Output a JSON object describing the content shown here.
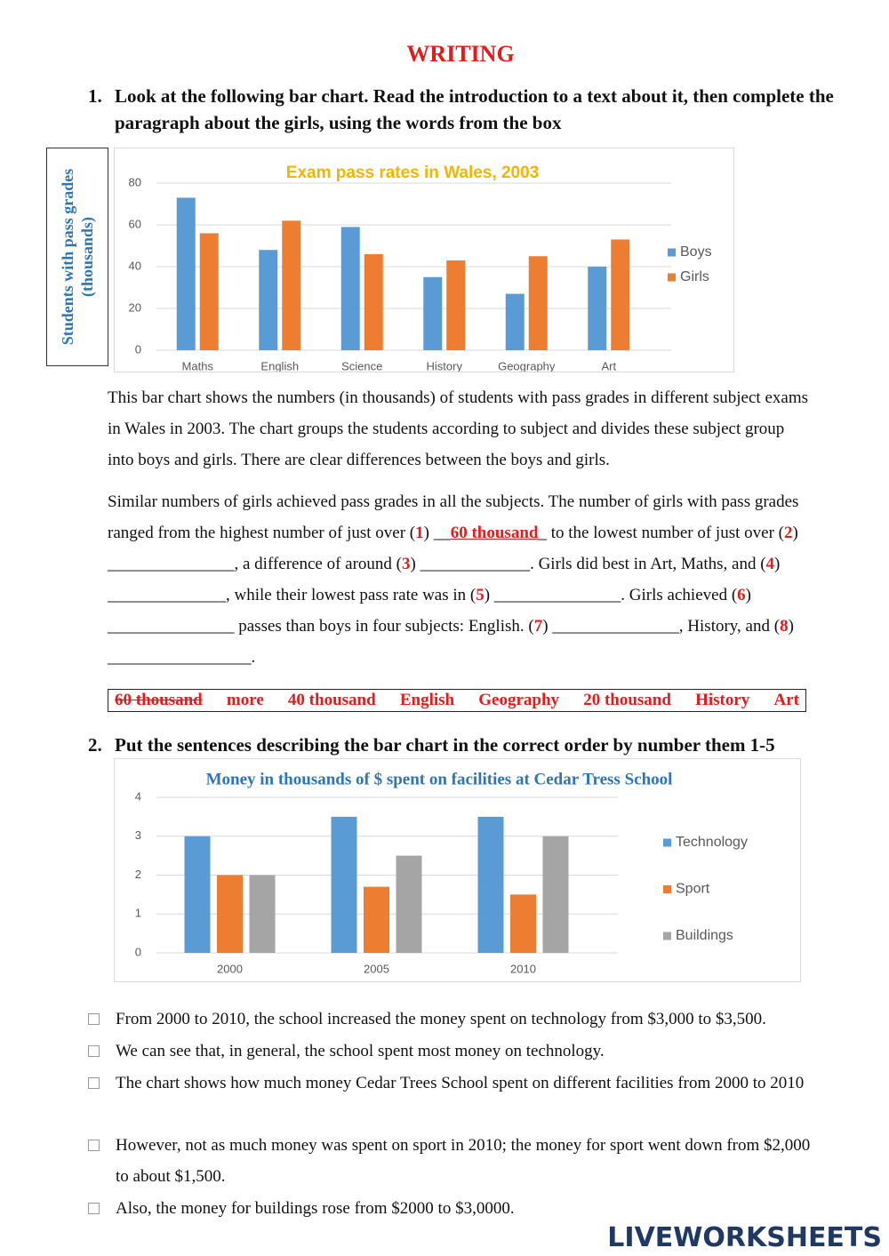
{
  "header": {
    "title": "WRITING"
  },
  "task1": {
    "number": "1.",
    "instruction": "Look at the following bar chart. Read the introduction to a text about it, then complete the paragraph about the girls, using the words from the box",
    "intro": " This bar chart shows the numbers (in thousands) of students with pass grades in different subject exams in Wales in 2003. The chart groups the students according to subject and divides these subject group into boys and girls. There are clear differences between the boys and girls.",
    "gap_text": [
      {
        "text": " Similar numbers of girls achieved pass grades in all the subjects. The number of girls with pass grades ranged from the highest number of just over (",
        "style": "plain"
      },
      {
        "text": "1",
        "style": "number"
      },
      {
        "text": ") __",
        "style": "plain"
      },
      {
        "text": "60 thousand",
        "style": "answer"
      },
      {
        "text": "_ to the lowest number of just over (",
        "style": "plain"
      },
      {
        "text": "2",
        "style": "number"
      },
      {
        "text": ") _______________, a difference of around (",
        "style": "plain"
      },
      {
        "text": "3",
        "style": "number"
      },
      {
        "text": ") _____________. Girls did best in Art, Maths, and (",
        "style": "plain"
      },
      {
        "text": "4",
        "style": "number"
      },
      {
        "text": ") ______________, while their lowest pass rate was in (",
        "style": "plain"
      },
      {
        "text": "5",
        "style": "number"
      },
      {
        "text": ") _______________. Girls achieved (",
        "style": "plain"
      },
      {
        "text": "6",
        "style": "number"
      },
      {
        "text": ") _______________ passes than boys in four subjects: English. (",
        "style": "plain"
      },
      {
        "text": "7",
        "style": "number"
      },
      {
        "text": ") _______________, History, and (",
        "style": "plain"
      },
      {
        "text": "8",
        "style": "number"
      },
      {
        "text": ") _________________.",
        "style": "plain"
      }
    ],
    "word_box": {
      "words": [
        "60 thousand",
        "more",
        "40 thousand",
        "English",
        "Geography",
        "20 thousand",
        "History",
        "Art"
      ],
      "crossed_out_index": 0
    }
  },
  "task2": {
    "number": "2.",
    "instruction": "Put the sentences describing the bar chart in the correct order by number them 1-5",
    "sentences": [
      "From 2000 to 2010, the school increased the money spent on technology from $3,000 to $3,500.",
      "We can see that, in general, the school spent most money on technology.",
      "The chart shows how much money Cedar Trees School spent on different facilities from 2000 to 2010",
      "However, not as much money was spent on sport in 2010; the money for sport went down from $2,000 to about $1,500.",
      "Also, the money for buildings rose from $2000 to $3,0000."
    ]
  },
  "chart_data": [
    {
      "type": "bar",
      "title": "Exam pass rates in Wales, 2003",
      "title_color": "#f5b400",
      "ylabel": "Students with pass grades (thousands)",
      "categories": [
        "Maths",
        "English",
        "Science",
        "History",
        "Geography",
        "Art"
      ],
      "series": [
        {
          "name": "Boys",
          "color": "#5b9bd5",
          "values": [
            73,
            48,
            59,
            35,
            27,
            40
          ]
        },
        {
          "name": "Girls",
          "color": "#ed7d31",
          "values": [
            56,
            62,
            46,
            43,
            45,
            53
          ]
        }
      ],
      "ylim": [
        0,
        80
      ],
      "yticks": [
        0,
        20,
        40,
        60,
        80
      ],
      "grid": true,
      "legend": "right"
    },
    {
      "type": "bar",
      "title": "Money in thousands of $ spent on facilities at Cedar Tress School",
      "title_color": "#2e75b6",
      "categories": [
        "2000",
        "2005",
        "2010"
      ],
      "series": [
        {
          "name": "Technology",
          "color": "#5b9bd5",
          "values": [
            3,
            3.5,
            3.5
          ]
        },
        {
          "name": "Sport",
          "color": "#ed7d31",
          "values": [
            2,
            1.7,
            1.5
          ]
        },
        {
          "name": "Buildings",
          "color": "#a5a5a5",
          "values": [
            2,
            2.5,
            3
          ]
        }
      ],
      "ylim": [
        0,
        4
      ],
      "yticks": [
        0,
        1,
        2,
        3,
        4
      ],
      "grid": true,
      "legend": "right"
    }
  ],
  "footer": {
    "logo": "LIVEWORKSHEETS"
  }
}
